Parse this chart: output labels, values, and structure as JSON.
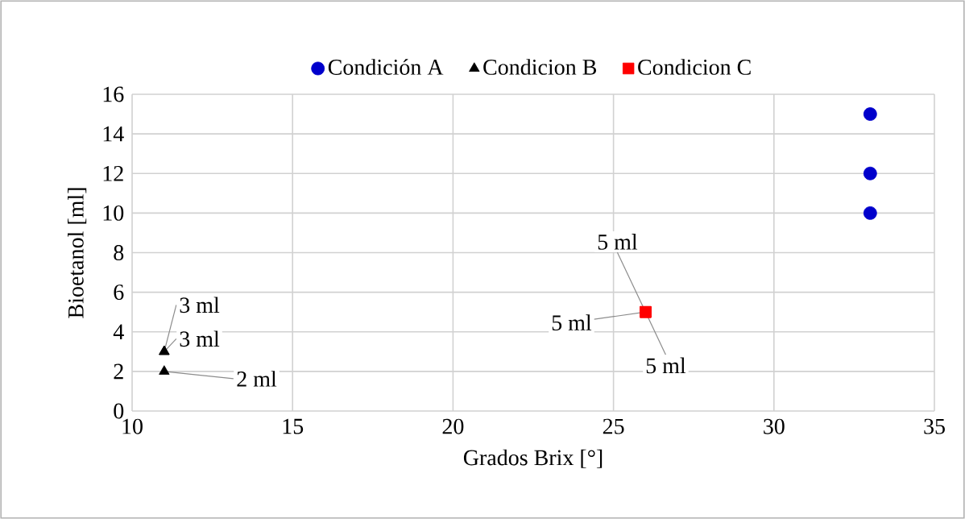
{
  "chart_data": {
    "type": "scatter",
    "xlabel": "Grados Brix [°]",
    "ylabel": "Bioetanol [ml]",
    "xlim": [
      10,
      35
    ],
    "xticks": [
      10,
      15,
      20,
      25,
      30,
      35
    ],
    "ylim": [
      0,
      16
    ],
    "yticks": [
      0,
      2,
      4,
      6,
      8,
      10,
      12,
      14,
      16
    ],
    "grid": true,
    "legend": "top",
    "series": [
      {
        "name": "Condición A",
        "color": "#0000cc",
        "marker": "circle",
        "x": [
          33,
          33,
          33
        ],
        "values": [
          15,
          12,
          10
        ]
      },
      {
        "name": "Condicion B",
        "color": "#000000",
        "marker": "triangle",
        "x": [
          11,
          11,
          11
        ],
        "values": [
          3,
          3,
          2
        ],
        "value_labels": [
          "3 ml",
          "3 ml",
          "2 ml"
        ]
      },
      {
        "name": "Condicion C",
        "color": "#ff0000",
        "marker": "square",
        "x": [
          26,
          26,
          26
        ],
        "values": [
          5,
          5,
          5
        ],
        "value_labels": [
          "5 ml",
          "5 ml",
          "5 ml"
        ]
      }
    ]
  }
}
